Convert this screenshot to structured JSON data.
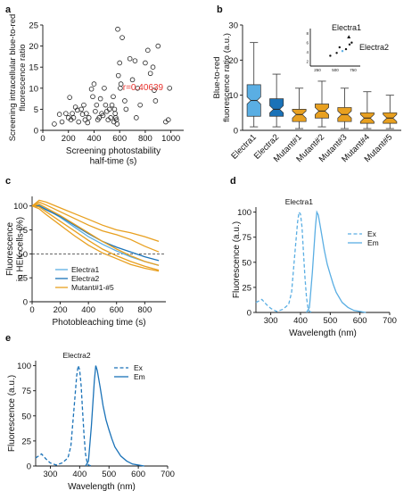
{
  "chart_data": [
    {
      "panel": "a",
      "type": "scatter",
      "xlabel": "Screening photostability\nhalf-time (s)",
      "ylabel": "Screening intracellular blue-to-red\nfluorescence ratio",
      "xlim": [
        0,
        1100
      ],
      "ylim": [
        0,
        25
      ],
      "xticks": [
        0,
        200,
        400,
        600,
        800,
        1000
      ],
      "yticks": [
        0,
        5,
        10,
        15,
        20,
        25
      ],
      "annotation": "r=0.40639",
      "annotation_color": "#e8322d",
      "points": [
        [
          90,
          1.5
        ],
        [
          130,
          3.8
        ],
        [
          150,
          2
        ],
        [
          180,
          4
        ],
        [
          200,
          3
        ],
        [
          210,
          7.8
        ],
        [
          220,
          2.5
        ],
        [
          230,
          4
        ],
        [
          240,
          3
        ],
        [
          255,
          5.5
        ],
        [
          270,
          4.8
        ],
        [
          280,
          2
        ],
        [
          300,
          5
        ],
        [
          310,
          3.8
        ],
        [
          320,
          6
        ],
        [
          330,
          2.5
        ],
        [
          340,
          4
        ],
        [
          350,
          1.8
        ],
        [
          360,
          3
        ],
        [
          380,
          9.8
        ],
        [
          390,
          8
        ],
        [
          400,
          11
        ],
        [
          410,
          4.5
        ],
        [
          420,
          6
        ],
        [
          430,
          2.5
        ],
        [
          440,
          3
        ],
        [
          450,
          7.5
        ],
        [
          460,
          4
        ],
        [
          470,
          3.5
        ],
        [
          480,
          10
        ],
        [
          490,
          6
        ],
        [
          500,
          4.5
        ],
        [
          510,
          2.5
        ],
        [
          520,
          5
        ],
        [
          530,
          3
        ],
        [
          540,
          6
        ],
        [
          550,
          8
        ],
        [
          555,
          2
        ],
        [
          560,
          5
        ],
        [
          565,
          4
        ],
        [
          570,
          3
        ],
        [
          575,
          2.5
        ],
        [
          580,
          1.5
        ],
        [
          585,
          24
        ],
        [
          590,
          13
        ],
        [
          600,
          16
        ],
        [
          605,
          10
        ],
        [
          610,
          11
        ],
        [
          620,
          22
        ],
        [
          640,
          7
        ],
        [
          650,
          5
        ],
        [
          680,
          17
        ],
        [
          700,
          12
        ],
        [
          720,
          16.5
        ],
        [
          730,
          3
        ],
        [
          740,
          10
        ],
        [
          760,
          6
        ],
        [
          800,
          16
        ],
        [
          820,
          19
        ],
        [
          840,
          13.5
        ],
        [
          860,
          15
        ],
        [
          870,
          9.5
        ],
        [
          880,
          7
        ],
        [
          900,
          20
        ],
        [
          960,
          2
        ],
        [
          980,
          2.5
        ],
        [
          990,
          10
        ]
      ]
    },
    {
      "panel": "b",
      "type": "box",
      "ylabel": "Blue-to-red\nfluorescence ratio (a.u.)",
      "ylim": [
        0,
        30
      ],
      "yticks": [
        0,
        10,
        20,
        30
      ],
      "categories": [
        "Electra1",
        "Electra2",
        "Mutant#1",
        "Mutant#2",
        "Mutant#3",
        "Mutant#4",
        "Mutant#5"
      ],
      "colors": [
        "#5aaee3",
        "#1a72b8",
        "#e8a020",
        "#e8a020",
        "#e8a020",
        "#e8a020",
        "#e8a020"
      ],
      "boxes": [
        {
          "min": 1,
          "q1": 4,
          "median": 8.5,
          "q3": 13,
          "max": 25
        },
        {
          "min": 1,
          "q1": 4,
          "median": 6,
          "q3": 9,
          "max": 16
        },
        {
          "min": 0.5,
          "q1": 2.5,
          "median": 4.5,
          "q3": 6,
          "max": 12
        },
        {
          "min": 1,
          "q1": 3.5,
          "median": 5.5,
          "q3": 7.5,
          "max": 14
        },
        {
          "min": 0.5,
          "q1": 2.5,
          "median": 4.5,
          "q3": 6.5,
          "max": 12
        },
        {
          "min": 0.5,
          "q1": 2,
          "median": 3.5,
          "q3": 5,
          "max": 11
        },
        {
          "min": 0.5,
          "q1": 2,
          "median": 3.5,
          "q3": 5,
          "max": 10
        }
      ],
      "inset": {
        "xticks": [
          250,
          500,
          750
        ],
        "yticks": [
          2,
          4,
          6,
          8
        ],
        "xlim": [
          150,
          850
        ],
        "ylim": [
          1,
          9
        ],
        "labels": [
          "Electra1",
          "Electra2"
        ],
        "points": [
          {
            "x": 430,
            "y": 3.2,
            "color": "#111111",
            "marker": "circle"
          },
          {
            "x": 520,
            "y": 3.8,
            "color": "#111111",
            "marker": "circle"
          },
          {
            "x": 560,
            "y": 5.0,
            "color": "#111111",
            "marker": "circle"
          },
          {
            "x": 600,
            "y": 4.2,
            "color": "#5aaee3",
            "marker": "circle"
          },
          {
            "x": 650,
            "y": 4.6,
            "color": "#111111",
            "marker": "circle"
          },
          {
            "x": 700,
            "y": 5.6,
            "color": "#111111",
            "marker": "circle"
          },
          {
            "x": 690,
            "y": 7.2,
            "color": "#111111",
            "marker": "triangle"
          },
          {
            "x": 730,
            "y": 6.0,
            "color": "#111111",
            "marker": "circle"
          }
        ]
      }
    },
    {
      "panel": "c",
      "type": "line",
      "xlabel": "Photobleaching time (s)",
      "ylabel": "Fluorescence\nin HEK cells (%)",
      "xlim": [
        0,
        950
      ],
      "ylim": [
        0,
        110
      ],
      "xticks": [
        0,
        200,
        400,
        600,
        800
      ],
      "yticks": [
        0,
        25,
        50,
        75,
        100
      ],
      "hline": 50,
      "series": [
        {
          "name": "Electra1",
          "color": "#5aaee3",
          "x": [
            0,
            50,
            100,
            200,
            300,
            400,
            500,
            600,
            700,
            800,
            900
          ],
          "values": [
            100,
            101,
            97,
            88,
            78,
            68,
            60,
            53,
            47,
            42,
            38
          ]
        },
        {
          "name": "Electra2",
          "color": "#1a72b8",
          "x": [
            0,
            50,
            100,
            200,
            300,
            400,
            500,
            600,
            700,
            800,
            900
          ],
          "values": [
            100,
            100,
            96,
            89,
            80,
            71,
            63,
            57,
            52,
            47,
            43
          ]
        },
        {
          "name": "Mutant#1-#5",
          "color": "#e8a020",
          "x": [
            0,
            50,
            100,
            200,
            300,
            400,
            500,
            600,
            700,
            800,
            900
          ],
          "values": [
            100,
            106,
            104,
            98,
            92,
            86,
            80,
            75,
            72,
            68,
            63
          ]
        },
        {
          "name": "",
          "color": "#e8a020",
          "x": [
            0,
            50,
            100,
            200,
            300,
            400,
            500,
            600,
            700,
            800,
            900
          ],
          "values": [
            100,
            104,
            101,
            94,
            87,
            80,
            74,
            70,
            65,
            58,
            52
          ]
        },
        {
          "name": "",
          "color": "#e8a020",
          "x": [
            0,
            50,
            100,
            200,
            300,
            400,
            500,
            600,
            700,
            800,
            900
          ],
          "values": [
            100,
            102,
            98,
            90,
            81,
            72,
            63,
            55,
            48,
            42,
            38
          ]
        },
        {
          "name": "",
          "color": "#e8a020",
          "x": [
            0,
            50,
            100,
            200,
            300,
            400,
            500,
            600,
            700,
            800,
            900
          ],
          "values": [
            100,
            99,
            94,
            84,
            74,
            64,
            55,
            48,
            42,
            37,
            33
          ]
        },
        {
          "name": "",
          "color": "#e8a020",
          "x": [
            0,
            50,
            100,
            200,
            300,
            400,
            500,
            600,
            700,
            800,
            900
          ],
          "values": [
            100,
            97,
            91,
            80,
            69,
            59,
            51,
            45,
            39,
            35,
            32
          ]
        }
      ]
    },
    {
      "panel": "d",
      "type": "line",
      "title": "Electra1",
      "xlabel": "Wavelength (nm)",
      "ylabel": "Fluorescence (a.u.)",
      "xlim": [
        250,
        700
      ],
      "ylim": [
        0,
        105
      ],
      "xticks": [
        300,
        400,
        500,
        600,
        700
      ],
      "yticks": [
        0,
        25,
        50,
        75,
        100
      ],
      "color": "#5aaee3",
      "series": [
        {
          "name": "Ex",
          "dash": true,
          "x": [
            250,
            270,
            285,
            300,
            320,
            340,
            360,
            370,
            380,
            390,
            395,
            400,
            405,
            410,
            415,
            420,
            425,
            430,
            440
          ],
          "values": [
            10,
            13,
            8,
            4,
            1,
            3,
            8,
            20,
            55,
            90,
            100,
            98,
            85,
            60,
            35,
            15,
            5,
            1,
            0
          ]
        },
        {
          "name": "Em",
          "dash": false,
          "x": [
            420,
            430,
            440,
            450,
            455,
            460,
            470,
            480,
            490,
            500,
            510,
            520,
            540,
            560,
            580,
            600,
            620
          ],
          "values": [
            0,
            5,
            40,
            85,
            100,
            97,
            80,
            62,
            48,
            38,
            28,
            20,
            10,
            5,
            2,
            1,
            0
          ]
        }
      ]
    },
    {
      "panel": "e",
      "type": "line",
      "title": "Electra2",
      "xlabel": "Wavelength (nm)",
      "ylabel": "Fluorescence (a.u.)",
      "xlim": [
        250,
        700
      ],
      "ylim": [
        0,
        105
      ],
      "xticks": [
        300,
        400,
        500,
        600,
        700
      ],
      "yticks": [
        0,
        25,
        50,
        75,
        100
      ],
      "color": "#1a72b8",
      "series": [
        {
          "name": "Ex",
          "dash": true,
          "x": [
            250,
            270,
            285,
            300,
            320,
            340,
            360,
            370,
            380,
            390,
            395,
            400,
            405,
            410,
            415,
            420,
            425,
            430,
            440
          ],
          "values": [
            8,
            12,
            7,
            3,
            1,
            3,
            8,
            20,
            55,
            90,
            100,
            96,
            80,
            55,
            30,
            12,
            4,
            1,
            0
          ]
        },
        {
          "name": "Em",
          "dash": false,
          "x": [
            420,
            430,
            440,
            450,
            455,
            460,
            470,
            480,
            490,
            500,
            510,
            520,
            540,
            560,
            580,
            600,
            620
          ],
          "values": [
            0,
            5,
            40,
            85,
            100,
            95,
            78,
            60,
            46,
            36,
            27,
            19,
            10,
            5,
            2,
            1,
            0
          ]
        }
      ]
    }
  ],
  "panel_labels": [
    "a",
    "b",
    "c",
    "d",
    "e"
  ]
}
